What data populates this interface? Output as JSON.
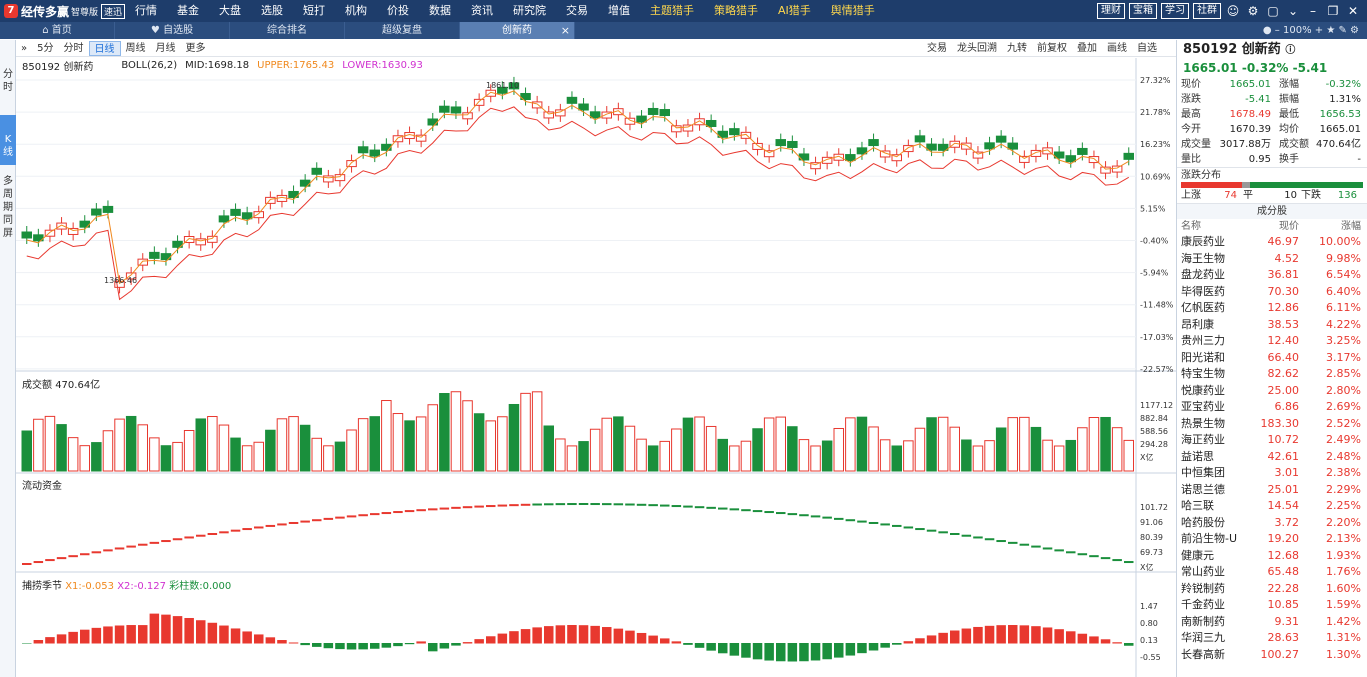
{
  "app": {
    "name": "经传多赢",
    "edition": "智尊版",
    "mode": "速迅"
  },
  "menu": [
    {
      "label": "行情"
    },
    {
      "label": "基金"
    },
    {
      "label": "大盘"
    },
    {
      "label": "选股"
    },
    {
      "label": "短打"
    },
    {
      "label": "机构"
    },
    {
      "label": "价投"
    },
    {
      "label": "数据"
    },
    {
      "label": "资讯"
    },
    {
      "label": "研究院"
    },
    {
      "label": "交易"
    },
    {
      "label": "增值"
    },
    {
      "label": "主题猎手",
      "hot": true
    },
    {
      "label": "策略猎手",
      "hot": true
    },
    {
      "label": "AI猎手",
      "hot": true
    },
    {
      "label": "舆情猎手",
      "hot": true
    }
  ],
  "top_buttons": [
    "理财",
    "宝箱",
    "学习",
    "社群"
  ],
  "tabs": [
    {
      "label": "首页"
    },
    {
      "label": "自选股"
    },
    {
      "label": "综合排名"
    },
    {
      "label": "超级复盘"
    },
    {
      "label": "创新药",
      "active": true
    }
  ],
  "zoom": "100%",
  "side_tabs": [
    "分时",
    "K线",
    "多周期同屏"
  ],
  "toolbar": {
    "periods": [
      "5分",
      "分时",
      "日线",
      "周线",
      "月线",
      "更多"
    ],
    "selected": "日线",
    "right": [
      "交易",
      "龙头回溯",
      "九转",
      "前复权",
      "叠加",
      "画线",
      "自选"
    ]
  },
  "boll": {
    "symbol": "850192 创新药",
    "name": "BOLL(26,2)",
    "mid": "MID:1698.18",
    "upper": "UPPER:1765.43",
    "lower": "LOWER:1630.93"
  },
  "price_axis": [
    "27.32%",
    "21.78%",
    "16.23%",
    "10.69%",
    "5.15%",
    "-0.40%",
    "-5.94%",
    "-11.48%",
    "-17.03%",
    "-22.57%"
  ],
  "annotations": {
    "high": "1861.10",
    "low": "1366.46"
  },
  "volume": {
    "title": "成交额",
    "value": "470.64亿",
    "axis": [
      "1177.12",
      "882.84",
      "588.56",
      "294.28",
      "X亿"
    ]
  },
  "flow": {
    "title": "流动资金",
    "axis": [
      "101.72",
      "91.06",
      "80.39",
      "69.73",
      "X亿"
    ]
  },
  "osc": {
    "title": "捕捞季节",
    "x1": "X1:-0.053",
    "x2": "X2:-0.127",
    "bars": "彩柱数:0.000",
    "axis": [
      "1.47",
      "0.80",
      "0.13",
      "-0.55"
    ]
  },
  "quote": {
    "title": "850192 创新药",
    "price": "1665.01",
    "change": "-0.32%",
    "diff": "-5.41",
    "rows": [
      [
        "现价",
        "1665.01",
        "涨幅",
        "-0.32%"
      ],
      [
        "涨跌",
        "-5.41",
        "振幅",
        "1.31%"
      ],
      [
        "最高",
        "1678.49",
        "最低",
        "1656.53"
      ],
      [
        "今开",
        "1670.39",
        "均价",
        "1665.01"
      ],
      [
        "成交量",
        "3017.88万",
        "成交额",
        "470.64亿"
      ],
      [
        "量比",
        "0.95",
        "换手",
        "-"
      ]
    ]
  },
  "distribution": {
    "title": "涨跌分布",
    "up_label": "上涨",
    "up": "74",
    "flat_label": "平",
    "flat": "10",
    "down_label": "下跌",
    "down": "136"
  },
  "constituents": {
    "title": "成分股",
    "headers": [
      "名称",
      "现价",
      "涨幅"
    ],
    "rows": [
      [
        "康辰药业",
        "46.97",
        "10.00%"
      ],
      [
        "海王生物",
        "4.52",
        "9.98%"
      ],
      [
        "盘龙药业",
        "36.81",
        "6.54%"
      ],
      [
        "毕得医药",
        "70.30",
        "6.40%"
      ],
      [
        "亿帆医药",
        "12.86",
        "6.11%"
      ],
      [
        "昂利康",
        "38.53",
        "4.22%"
      ],
      [
        "贵州三力",
        "12.40",
        "3.25%"
      ],
      [
        "阳光诺和",
        "66.40",
        "3.17%"
      ],
      [
        "特宝生物",
        "82.62",
        "2.85%"
      ],
      [
        "悦康药业",
        "25.00",
        "2.80%"
      ],
      [
        "亚宝药业",
        "6.86",
        "2.69%"
      ],
      [
        "热景生物",
        "183.30",
        "2.52%"
      ],
      [
        "海正药业",
        "10.72",
        "2.49%"
      ],
      [
        "益诺思",
        "42.61",
        "2.48%"
      ],
      [
        "中恒集团",
        "3.01",
        "2.38%"
      ],
      [
        "诺思兰德",
        "25.01",
        "2.29%"
      ],
      [
        "哈三联",
        "14.54",
        "2.25%"
      ],
      [
        "哈药股份",
        "3.72",
        "2.20%"
      ],
      [
        "前沿生物-U",
        "19.20",
        "2.13%"
      ],
      [
        "健康元",
        "12.68",
        "1.93%"
      ],
      [
        "常山药业",
        "65.48",
        "1.76%"
      ],
      [
        "羚锐制药",
        "22.28",
        "1.60%"
      ],
      [
        "千金药业",
        "10.85",
        "1.59%"
      ],
      [
        "南新制药",
        "9.31",
        "1.42%"
      ],
      [
        "华润三九",
        "28.63",
        "1.31%"
      ],
      [
        "长春高新",
        "100.27",
        "1.30%"
      ]
    ]
  }
}
